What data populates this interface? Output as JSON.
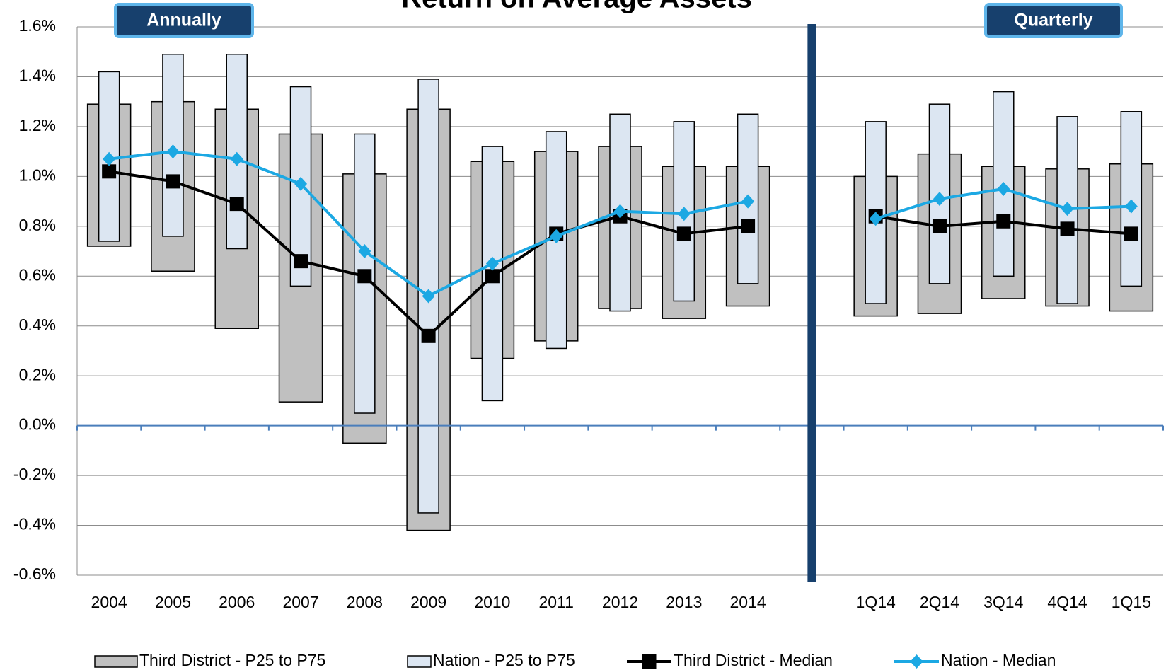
{
  "chart_data": {
    "type": "range-line",
    "title": "Return on Average Assets",
    "annotations": [
      "Annually",
      "Quarterly"
    ],
    "categories": [
      "2004",
      "2005",
      "2006",
      "2007",
      "2008",
      "2009",
      "2010",
      "2011",
      "2012",
      "2013",
      "2014",
      null,
      "1Q14",
      "2Q14",
      "3Q14",
      "4Q14",
      "1Q15"
    ],
    "ylim": [
      -0.6,
      1.6
    ],
    "yticks": [
      {
        "value": -0.6,
        "label": "-0.6%"
      },
      {
        "value": -0.4,
        "label": "-0.4%"
      },
      {
        "value": -0.2,
        "label": "-0.2%"
      },
      {
        "value": 0,
        "label": "0.0%"
      },
      {
        "value": 0.2,
        "label": "0.2%"
      },
      {
        "value": 0.4,
        "label": "0.4%"
      },
      {
        "value": 0.6,
        "label": "0.6%"
      },
      {
        "value": 0.8,
        "label": "0.8%"
      },
      {
        "value": 1.0,
        "label": "1.0%"
      },
      {
        "value": 1.2,
        "label": "1.2%"
      },
      {
        "value": 1.4,
        "label": "1.4%"
      },
      {
        "value": 1.6,
        "label": "1.6%"
      }
    ],
    "grid": true,
    "series": [
      {
        "name": "Third District - P25 to P75",
        "type": "range",
        "color": "#c0c0c0",
        "low": [
          0.72,
          0.62,
          0.39,
          0.095,
          -0.07,
          -0.42,
          0.27,
          0.34,
          0.47,
          0.43,
          0.48,
          null,
          0.44,
          0.45,
          0.51,
          0.48,
          0.46
        ],
        "high": [
          1.29,
          1.3,
          1.27,
          1.17,
          1.01,
          1.27,
          1.06,
          1.1,
          1.12,
          1.04,
          1.04,
          null,
          1.0,
          1.09,
          1.04,
          1.03,
          1.05
        ]
      },
      {
        "name": "Nation - P25 to P75",
        "type": "range",
        "color": "#dce6f2",
        "low": [
          0.74,
          0.76,
          0.71,
          0.56,
          0.05,
          -0.35,
          0.1,
          0.31,
          0.46,
          0.5,
          0.57,
          null,
          0.49,
          0.57,
          0.6,
          0.49,
          0.56
        ],
        "high": [
          1.42,
          1.49,
          1.49,
          1.36,
          1.17,
          1.39,
          1.12,
          1.18,
          1.25,
          1.22,
          1.25,
          null,
          1.22,
          1.29,
          1.34,
          1.24,
          1.26
        ]
      },
      {
        "name": "Third District - Median",
        "type": "line",
        "marker": "square",
        "color": "#000000",
        "values": [
          1.02,
          0.98,
          0.89,
          0.66,
          0.6,
          0.36,
          0.6,
          0.77,
          0.84,
          0.77,
          0.8,
          null,
          0.84,
          0.8,
          0.82,
          0.79,
          0.77
        ]
      },
      {
        "name": "Nation - Median",
        "type": "line",
        "marker": "diamond",
        "color": "#1ca8e3",
        "values": [
          1.07,
          1.1,
          1.07,
          0.97,
          0.7,
          0.52,
          0.65,
          0.76,
          0.86,
          0.85,
          0.9,
          null,
          0.83,
          0.91,
          0.95,
          0.87,
          0.88
        ]
      }
    ]
  }
}
